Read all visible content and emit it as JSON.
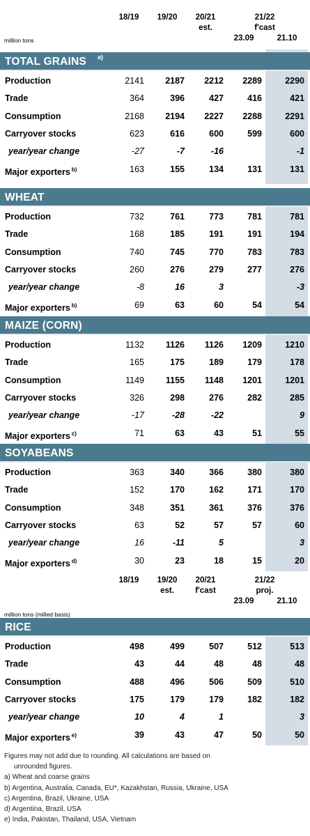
{
  "headers": {
    "top": {
      "y1": "18/19",
      "y2": "19/20",
      "y3": "20/21",
      "y3_sub": "est.",
      "y4": "21/22",
      "y4_sub": "f'cast",
      "d1": "23.09",
      "d2": "21.10",
      "unit": "million tons"
    },
    "rice": {
      "y1": "18/19",
      "y2": "19/20",
      "y2_sub": "est.",
      "y3": "20/21",
      "y3_sub": "f'cast",
      "y4": "21/22",
      "y4_sub": "proj.",
      "d1": "23.09",
      "d2": "21.10",
      "unit": "million tons (milled basis)"
    }
  },
  "sections": [
    {
      "title": "TOTAL GRAINS",
      "sup": "a)",
      "rows": [
        {
          "label": "Production",
          "sup": "",
          "v": [
            "2141",
            "2187",
            "2212",
            "2289",
            "2290"
          ]
        },
        {
          "label": "Trade",
          "sup": "",
          "v": [
            "364",
            "396",
            "427",
            "416",
            "421"
          ]
        },
        {
          "label": "Consumption",
          "sup": "",
          "v": [
            "2168",
            "2194",
            "2227",
            "2288",
            "2291"
          ]
        },
        {
          "label": "Carryover stocks",
          "sup": "",
          "v": [
            "623",
            "616",
            "600",
            "599",
            "600"
          ]
        },
        {
          "label": "year/year change",
          "sup": "",
          "v": [
            "-27",
            "-7",
            "-16",
            "",
            "-1"
          ]
        },
        {
          "label": "Major exporters",
          "sup": "b)",
          "v": [
            "163",
            "155",
            "134",
            "131",
            "131"
          ]
        }
      ]
    },
    {
      "title": "WHEAT",
      "sup": "",
      "rows": [
        {
          "label": "Production",
          "sup": "",
          "v": [
            "732",
            "761",
            "773",
            "781",
            "781"
          ]
        },
        {
          "label": "Trade",
          "sup": "",
          "v": [
            "168",
            "185",
            "191",
            "191",
            "194"
          ]
        },
        {
          "label": "Consumption",
          "sup": "",
          "v": [
            "740",
            "745",
            "770",
            "783",
            "783"
          ]
        },
        {
          "label": "Carryover stocks",
          "sup": "",
          "v": [
            "260",
            "276",
            "279",
            "277",
            "276"
          ]
        },
        {
          "label": "year/year change",
          "sup": "",
          "v": [
            "-8",
            "16",
            "3",
            "",
            "-3"
          ]
        },
        {
          "label": "Major exporters",
          "sup": "b)",
          "v": [
            "69",
            "63",
            "60",
            "54",
            "54"
          ]
        }
      ]
    },
    {
      "title": "MAIZE (CORN)",
      "sup": "",
      "rows": [
        {
          "label": "Production",
          "sup": "",
          "v": [
            "1132",
            "1126",
            "1126",
            "1209",
            "1210"
          ]
        },
        {
          "label": "Trade",
          "sup": "",
          "v": [
            "165",
            "175",
            "189",
            "179",
            "178"
          ]
        },
        {
          "label": "Consumption",
          "sup": "",
          "v": [
            "1149",
            "1155",
            "1148",
            "1201",
            "1201"
          ]
        },
        {
          "label": "Carryover stocks",
          "sup": "",
          "v": [
            "326",
            "298",
            "276",
            "282",
            "285"
          ]
        },
        {
          "label": "year/year change",
          "sup": "",
          "v": [
            "-17",
            "-28",
            "-22",
            "",
            "9"
          ]
        },
        {
          "label": "Major exporters",
          "sup": "c)",
          "v": [
            "71",
            "63",
            "43",
            "51",
            "55"
          ]
        }
      ]
    },
    {
      "title": "SOYABEANS",
      "sup": "",
      "rows": [
        {
          "label": "Production",
          "sup": "",
          "v": [
            "363",
            "340",
            "366",
            "380",
            "380"
          ]
        },
        {
          "label": "Trade",
          "sup": "",
          "v": [
            "152",
            "170",
            "162",
            "171",
            "170"
          ]
        },
        {
          "label": "Consumption",
          "sup": "",
          "v": [
            "348",
            "351",
            "361",
            "376",
            "376"
          ]
        },
        {
          "label": "Carryover stocks",
          "sup": "",
          "v": [
            "63",
            "52",
            "57",
            "57",
            "60"
          ]
        },
        {
          "label": "year/year change",
          "sup": "",
          "v": [
            "16",
            "-11",
            "5",
            "",
            "3"
          ]
        },
        {
          "label": "Major exporters",
          "sup": "d)",
          "v": [
            "30",
            "23",
            "18",
            "15",
            "20"
          ]
        }
      ]
    },
    {
      "title": "RICE",
      "sup": "",
      "rows": [
        {
          "label": "Production",
          "sup": "",
          "v": [
            "498",
            "499",
            "507",
            "512",
            "513"
          ]
        },
        {
          "label": "Trade",
          "sup": "",
          "v": [
            "43",
            "44",
            "48",
            "48",
            "48"
          ]
        },
        {
          "label": "Consumption",
          "sup": "",
          "v": [
            "488",
            "496",
            "506",
            "509",
            "510"
          ]
        },
        {
          "label": "Carryover stocks",
          "sup": "",
          "v": [
            "175",
            "179",
            "179",
            "182",
            "182"
          ]
        },
        {
          "label": "year/year change",
          "sup": "",
          "v": [
            "10",
            "4",
            "1",
            "",
            "3"
          ]
        },
        {
          "label": "Major exporters",
          "sup": "e)",
          "v": [
            "39",
            "43",
            "47",
            "50",
            "50"
          ]
        }
      ]
    }
  ],
  "notes": [
    "Figures may not add due to rounding. All calculations are based on",
    "unrounded figures.",
    "a) Wheat and coarse grains",
    "b) Argentina, Australia, Canada, EU*, Kazakhstan, Russia, Ukraine, USA",
    "c) Argentina, Brazil, Ukraine, USA",
    "d) Argentina, Brazil, USA",
    "e) India, Pakistan, Thailand, USA, Vietnam"
  ]
}
